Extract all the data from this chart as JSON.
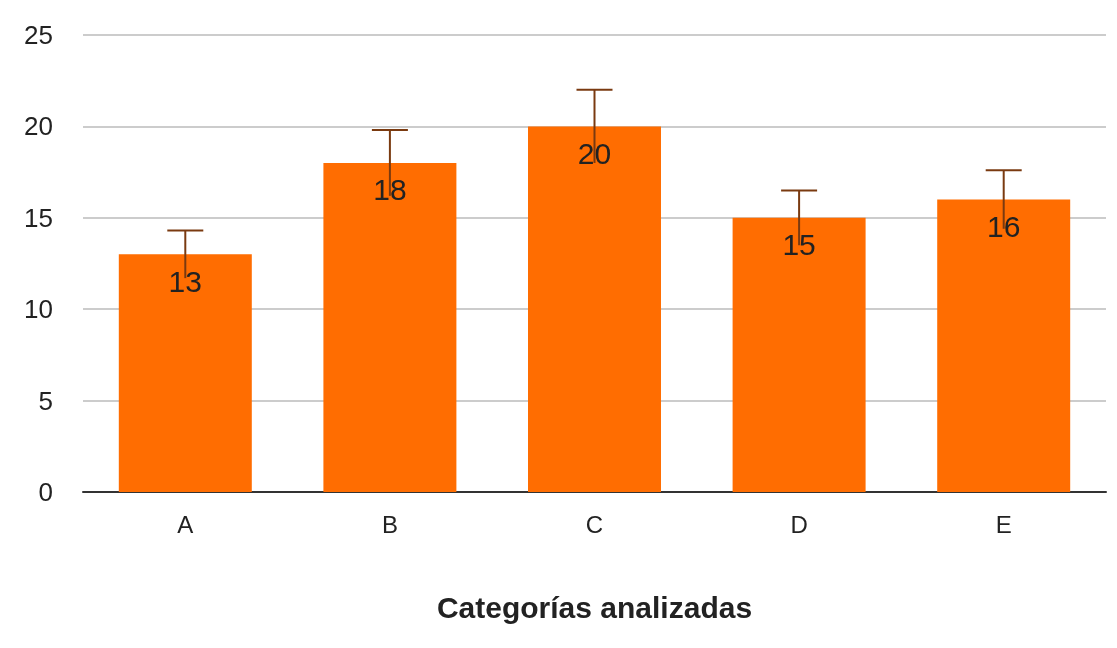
{
  "chart_data": {
    "type": "bar",
    "xlabel": "Categorías analizadas",
    "categories": [
      "A",
      "B",
      "C",
      "D",
      "E"
    ],
    "values": [
      13,
      18,
      20,
      15,
      16
    ],
    "errors": [
      1.3,
      1.8,
      2,
      1.5,
      1.6
    ],
    "color": "#ff6d01",
    "ylim": [
      0,
      25
    ],
    "yticks": [
      0,
      5,
      10,
      15,
      20,
      25
    ],
    "grid": "y",
    "data_labels": true
  }
}
